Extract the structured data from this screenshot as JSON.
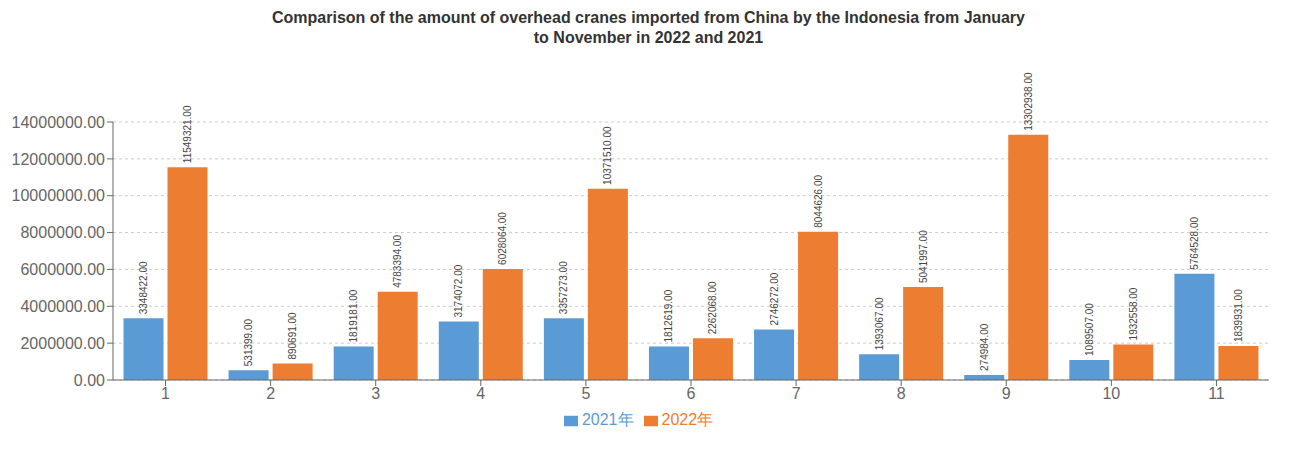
{
  "chart_data": {
    "type": "bar",
    "title": "Comparison of the amount of overhead cranes imported from China by the Indonesia from January\nto November in 2022 and 2021",
    "categories": [
      "1",
      "2",
      "3",
      "4",
      "5",
      "6",
      "7",
      "8",
      "9",
      "10",
      "11"
    ],
    "series": [
      {
        "name": "2021年",
        "color": "#5B9BD5",
        "values": [
          3348422,
          531399,
          1819181,
          3174072,
          3357273,
          1812619,
          2746272,
          1393067,
          274984,
          1089507,
          5764528
        ],
        "value_labels": [
          "3348422.00",
          "531399.00",
          "1819181.00",
          "3174072.00",
          "3357273.00",
          "1812619.00",
          "2746272.00",
          "1393067.00",
          "274984.00",
          "1089507.00",
          "5764528.00"
        ]
      },
      {
        "name": "2022年",
        "color": "#ED7D31",
        "values": [
          11549321,
          890691,
          4783394,
          6028064,
          10371510,
          2262068,
          8044626,
          5041997,
          13302938,
          1932558,
          1839931
        ],
        "value_labels": [
          "11549321.00",
          "890691.00",
          "4783394.00",
          "6028064.00",
          "10371510.00",
          "2262068.00",
          "8044626.00",
          "5041997.00",
          "13302938.00",
          "1932558.00",
          "1839931.00"
        ]
      }
    ],
    "ylim": [
      0,
      14000000
    ],
    "yticks": [
      {
        "value": 0,
        "label": "0.00"
      },
      {
        "value": 2000000,
        "label": "2000000.00"
      },
      {
        "value": 4000000,
        "label": "4000000.00"
      },
      {
        "value": 6000000,
        "label": "6000000.00"
      },
      {
        "value": 8000000,
        "label": "8000000.00"
      },
      {
        "value": 10000000,
        "label": "10000000.00"
      },
      {
        "value": 12000000,
        "label": "12000000.00"
      },
      {
        "value": 14000000,
        "label": "14000000.00"
      }
    ],
    "grid": true,
    "legend": "bottom",
    "data_labels": true
  }
}
